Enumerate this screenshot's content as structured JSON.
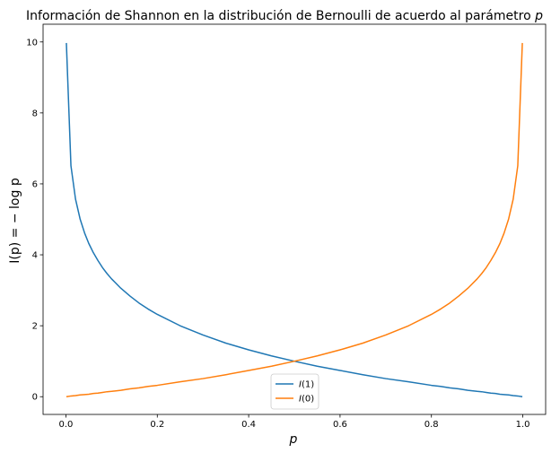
{
  "chart_data": {
    "type": "line",
    "title": "Información de Shannon en la distribución de Bernoulli de acuerdo al parámetro p",
    "xlabel": "p",
    "ylabel": "I(p) = − log  p",
    "xlim": [
      -0.05,
      1.05
    ],
    "ylim": [
      -0.5,
      10.5
    ],
    "x_ticks": [
      0.0,
      0.2,
      0.4,
      0.6,
      0.8,
      1.0
    ],
    "x_tick_labels": [
      "0.0",
      "0.2",
      "0.4",
      "0.6",
      "0.8",
      "1.0"
    ],
    "y_ticks": [
      0,
      2,
      4,
      6,
      8,
      10
    ],
    "y_tick_labels": [
      "0",
      "2",
      "4",
      "6",
      "8",
      "10"
    ],
    "grid": false,
    "legend_position": "lower-center",
    "x": [
      0.001,
      0.011,
      0.021,
      0.031,
      0.041,
      0.05,
      0.06,
      0.07,
      0.08,
      0.09,
      0.1,
      0.12,
      0.14,
      0.16,
      0.18,
      0.2,
      0.25,
      0.3,
      0.35,
      0.4,
      0.45,
      0.5,
      0.55,
      0.6,
      0.65,
      0.7,
      0.75,
      0.8,
      0.82,
      0.84,
      0.86,
      0.88,
      0.9,
      0.91,
      0.92,
      0.93,
      0.94,
      0.95,
      0.959,
      0.969,
      0.979,
      0.989,
      0.999
    ],
    "series": [
      {
        "name": "I(1)",
        "color": "#1f77b4",
        "values": [
          9.97,
          6.51,
          5.57,
          5.01,
          4.61,
          4.32,
          4.06,
          3.84,
          3.64,
          3.47,
          3.32,
          3.06,
          2.84,
          2.64,
          2.47,
          2.32,
          2.0,
          1.74,
          1.51,
          1.32,
          1.15,
          1.0,
          0.86,
          0.74,
          0.62,
          0.51,
          0.42,
          0.32,
          0.29,
          0.25,
          0.22,
          0.18,
          0.15,
          0.14,
          0.12,
          0.1,
          0.09,
          0.07,
          0.06,
          0.05,
          0.03,
          0.02,
          0.0
        ]
      },
      {
        "name": "I(0)",
        "color": "#ff7f0e",
        "values": [
          0.0,
          0.02,
          0.03,
          0.05,
          0.06,
          0.07,
          0.09,
          0.1,
          0.12,
          0.14,
          0.15,
          0.18,
          0.22,
          0.25,
          0.29,
          0.32,
          0.42,
          0.51,
          0.62,
          0.74,
          0.86,
          1.0,
          1.15,
          1.32,
          1.51,
          1.74,
          2.0,
          2.32,
          2.47,
          2.64,
          2.84,
          3.06,
          3.32,
          3.47,
          3.64,
          3.84,
          4.06,
          4.32,
          4.61,
          5.01,
          5.57,
          6.51,
          9.97
        ]
      }
    ]
  }
}
